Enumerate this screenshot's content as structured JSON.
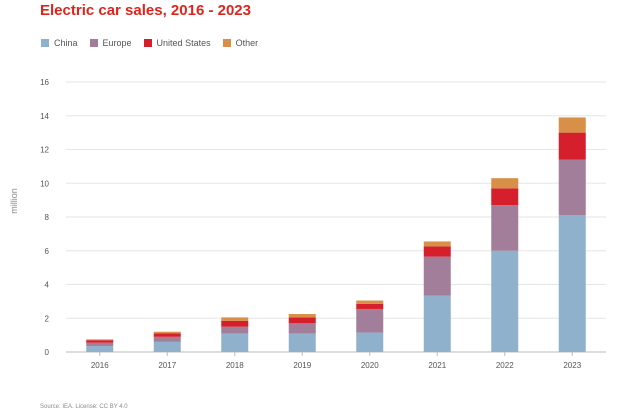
{
  "chart_data": {
    "type": "bar",
    "stacked": true,
    "title": "Electric car sales, 2016 - 2023",
    "xlabel": "",
    "ylabel": "million",
    "ylim": [
      0,
      16
    ],
    "yticks": [
      0,
      2,
      4,
      6,
      8,
      10,
      12,
      14,
      16
    ],
    "categories": [
      "2016",
      "2017",
      "2018",
      "2019",
      "2020",
      "2021",
      "2022",
      "2023"
    ],
    "series": [
      {
        "name": "China",
        "color": "#8fb1cc",
        "values": [
          0.35,
          0.6,
          1.1,
          1.1,
          1.15,
          3.35,
          6.0,
          8.1
        ]
      },
      {
        "name": "Europe",
        "color": "#a27e9a",
        "values": [
          0.2,
          0.3,
          0.4,
          0.6,
          1.4,
          2.3,
          2.7,
          3.3
        ]
      },
      {
        "name": "United States",
        "color": "#d61f2c",
        "values": [
          0.15,
          0.2,
          0.35,
          0.35,
          0.3,
          0.6,
          1.0,
          1.6
        ]
      },
      {
        "name": "Other",
        "color": "#d88f47",
        "values": [
          0.05,
          0.1,
          0.2,
          0.2,
          0.2,
          0.3,
          0.6,
          0.9
        ]
      }
    ],
    "grid": true,
    "legend_position": "top-left"
  },
  "source": "Source: IEA. License: CC BY 4.0"
}
